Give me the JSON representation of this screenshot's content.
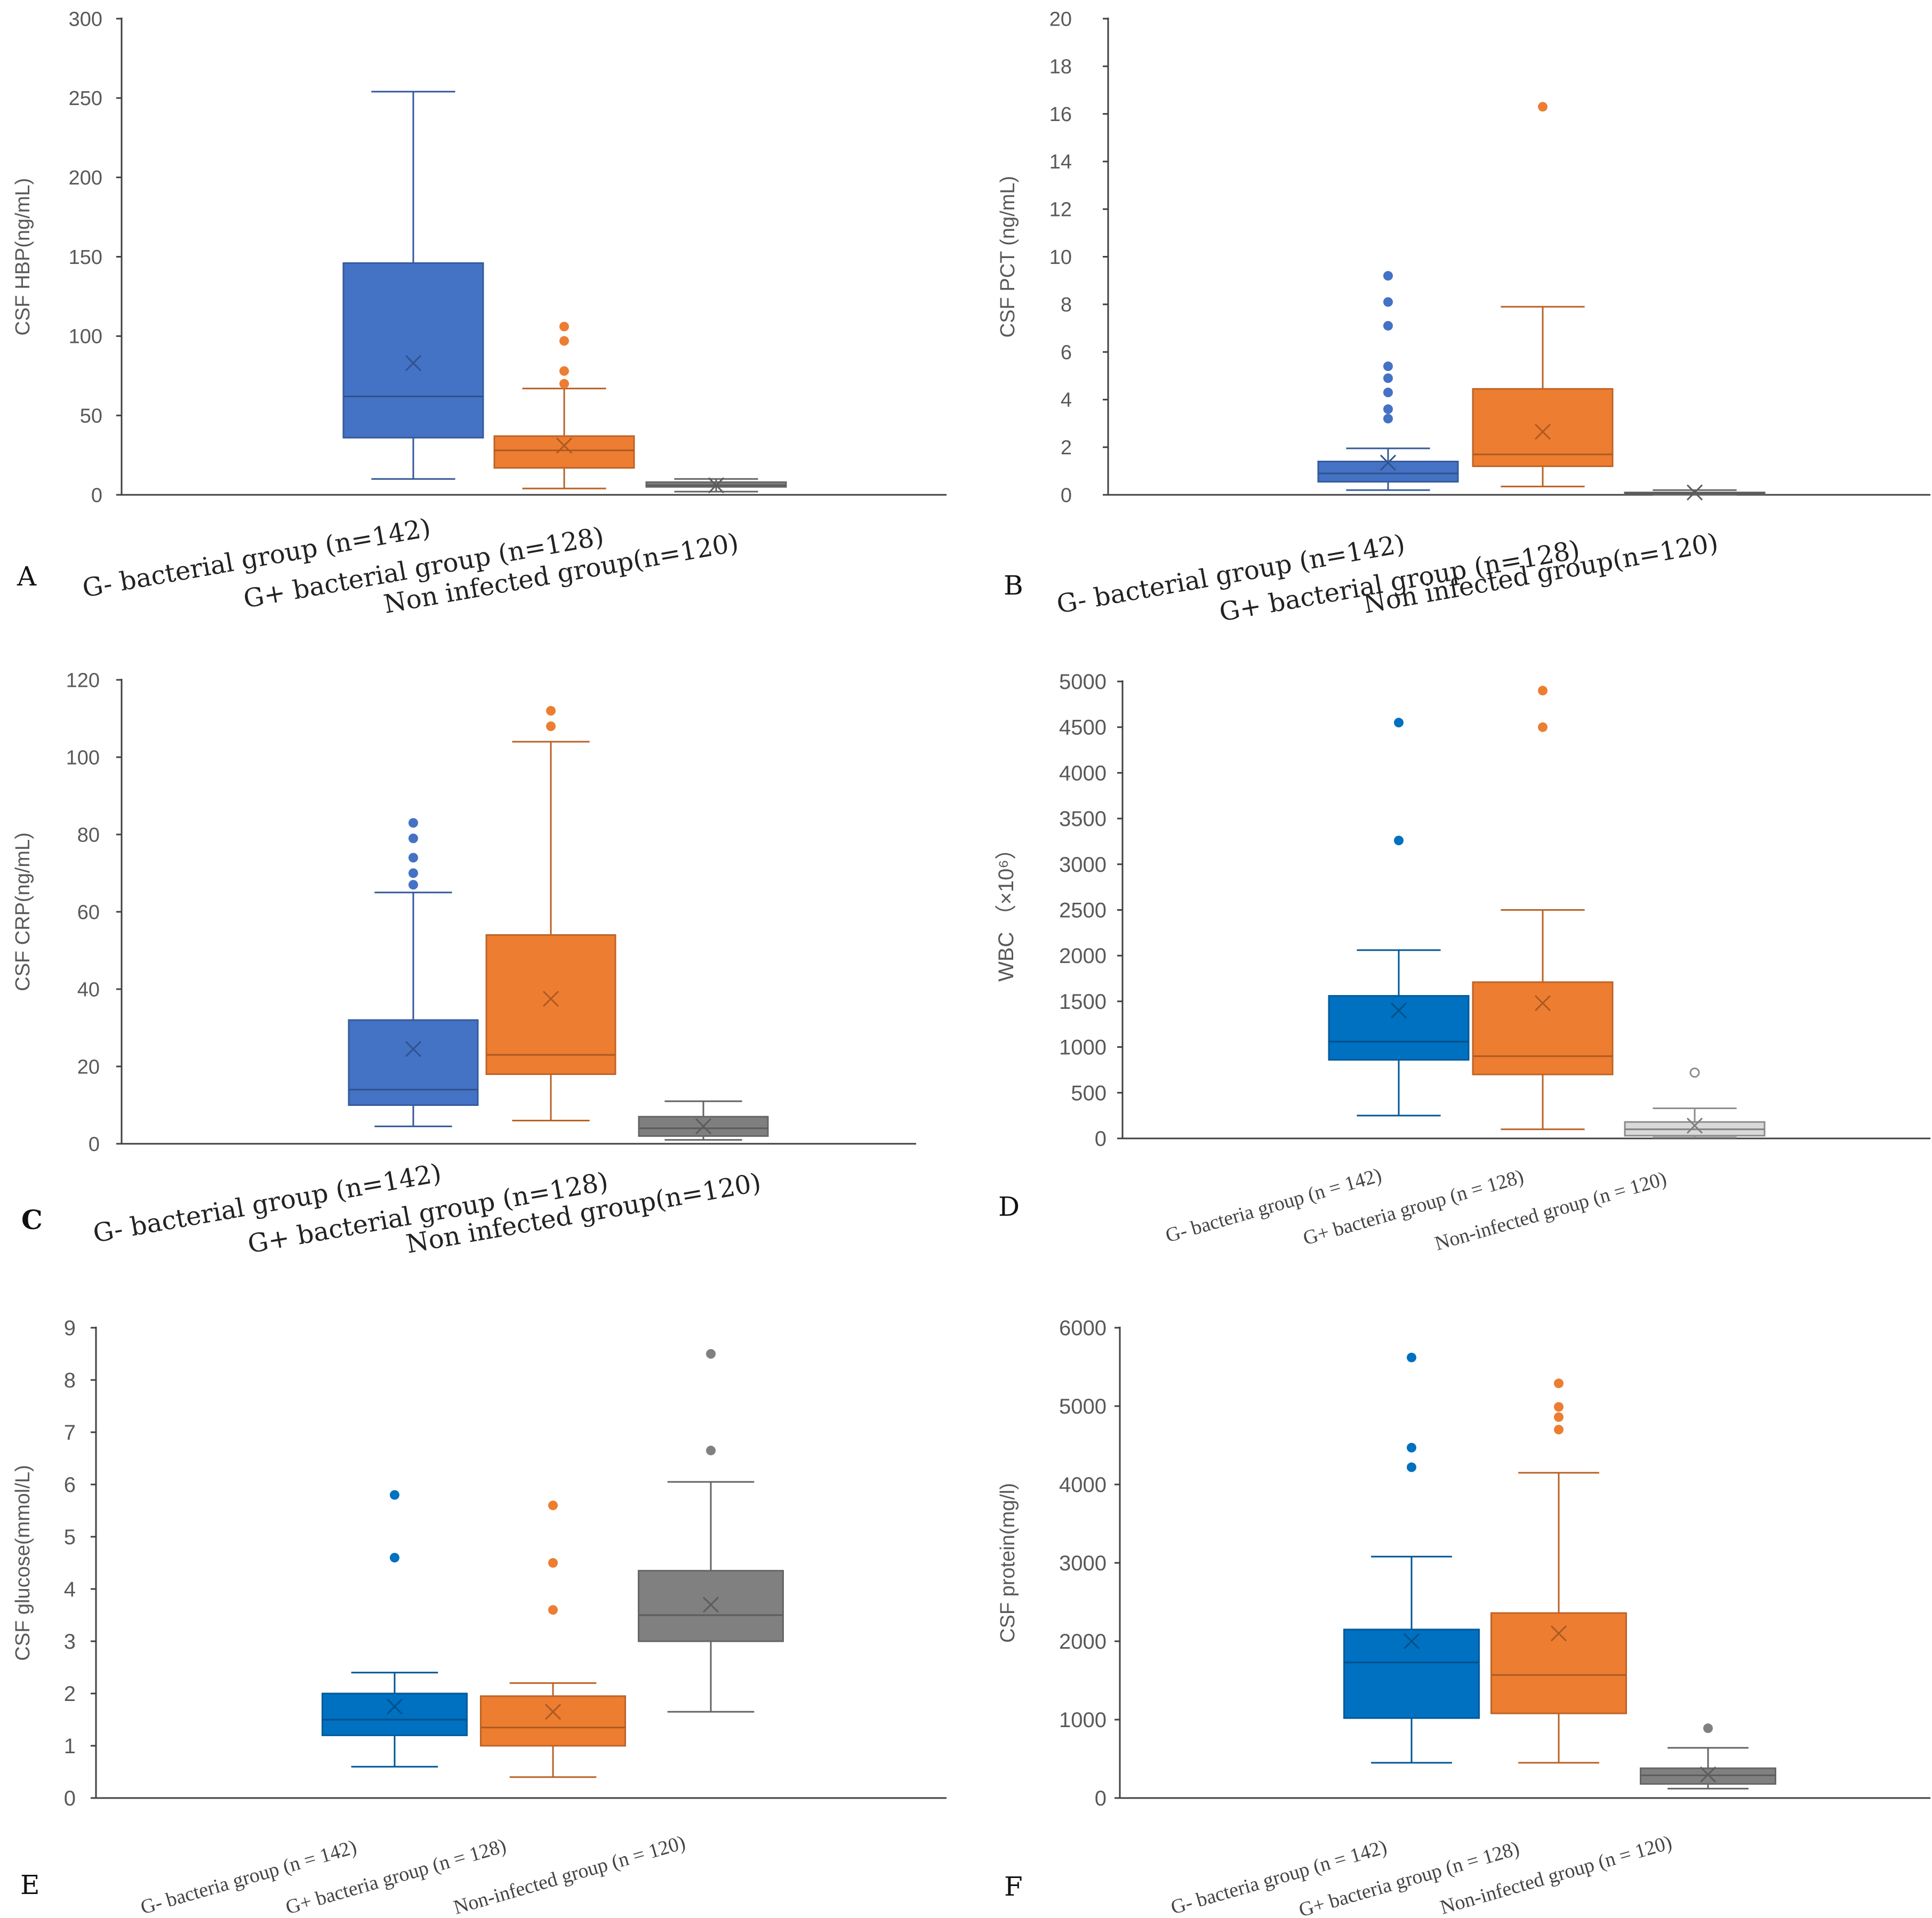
{
  "chart_data": [
    {
      "panel": "A",
      "type": "box",
      "ylabel": "CSF HBP(ng/mL)",
      "ylim": [
        0,
        300
      ],
      "yticks": [
        0,
        50,
        100,
        150,
        200,
        250,
        300
      ],
      "categories": [
        "G- bacterial group (n=142)",
        "G+ bacterial group (n=128)",
        "Non infected group(n=120)"
      ],
      "series": [
        {
          "name": "G- bacterial group (n=142)",
          "color": "#4472C4",
          "whisker_low": 10,
          "q1": 36,
          "median": 62,
          "q3": 146,
          "whisker_high": 254,
          "mean": 83,
          "outliers": []
        },
        {
          "name": "G+ bacterial group (n=128)",
          "color": "#ED7D31",
          "whisker_low": 4,
          "q1": 17,
          "median": 28,
          "q3": 37,
          "whisker_high": 67,
          "mean": 31,
          "outliers": [
            70,
            78,
            97,
            106
          ]
        },
        {
          "name": "Non infected group(n=120)",
          "color": "#7F7F7F",
          "whisker_low": 2,
          "q1": 5,
          "median": 6,
          "q3": 8,
          "whisker_high": 10,
          "mean": 6,
          "outliers": []
        }
      ]
    },
    {
      "panel": "B",
      "type": "box",
      "ylabel": "CSF  PCT (ng/mL)",
      "ylim": [
        0,
        20
      ],
      "yticks": [
        0,
        2,
        4,
        6,
        8,
        10,
        12,
        14,
        16,
        18,
        20
      ],
      "categories": [
        "G- bacterial group (n=142)",
        "G+ bacterial group (n=128)",
        "Non infected group(n=120)"
      ],
      "series": [
        {
          "name": "G- bacterial group (n=142)",
          "color": "#4472C4",
          "whisker_low": 0.2,
          "q1": 0.55,
          "median": 0.9,
          "q3": 1.4,
          "whisker_high": 1.95,
          "mean": 1.35,
          "outliers": [
            3.2,
            3.6,
            4.3,
            4.9,
            5.4,
            7.1,
            8.1,
            9.2
          ]
        },
        {
          "name": "G+ bacterial group (n=128)",
          "color": "#ED7D31",
          "whisker_low": 0.35,
          "q1": 1.2,
          "median": 1.7,
          "q3": 4.45,
          "whisker_high": 7.9,
          "mean": 2.65,
          "outliers": [
            16.3
          ]
        },
        {
          "name": "Non infected group(n=120)",
          "color": "#7F7F7F",
          "whisker_low": 0.0,
          "q1": 0.03,
          "median": 0.06,
          "q3": 0.1,
          "whisker_high": 0.2,
          "mean": 0.1,
          "outliers": []
        }
      ]
    },
    {
      "panel": "C",
      "type": "box",
      "ylabel": "CSF  CRP(ng/mL)",
      "ylim": [
        0,
        120
      ],
      "yticks": [
        0,
        20,
        40,
        60,
        80,
        100,
        120
      ],
      "categories": [
        "G- bacterial group (n=142)",
        "G+ bacterial group (n=128)",
        "Non infected group(n=120)"
      ],
      "series": [
        {
          "name": "G- bacterial group (n=142)",
          "color": "#4472C4",
          "whisker_low": 4.5,
          "q1": 10,
          "median": 14,
          "q3": 32,
          "whisker_high": 65,
          "mean": 24.5,
          "outliers": [
            67,
            70,
            74,
            79,
            83
          ]
        },
        {
          "name": "G+ bacterial group (n=128)",
          "color": "#ED7D31",
          "whisker_low": 6,
          "q1": 18,
          "median": 23,
          "q3": 54,
          "whisker_high": 104,
          "mean": 37.5,
          "outliers": [
            108,
            112
          ]
        },
        {
          "name": "Non infected group(n=120)",
          "color": "#7F7F7F",
          "whisker_low": 1,
          "q1": 2,
          "median": 4,
          "q3": 7,
          "whisker_high": 11,
          "mean": 4.5,
          "outliers": []
        }
      ]
    },
    {
      "panel": "D",
      "type": "box",
      "ylabel": "WBC （×10⁶）",
      "ylim": [
        0,
        5000
      ],
      "yticks": [
        0,
        500,
        1000,
        1500,
        2000,
        2500,
        3000,
        3500,
        4000,
        4500,
        5000
      ],
      "categories": [
        "G- bacteria group (n = 142)",
        "G+ bacteria group (n = 128)",
        "Non-infected group (n = 120)"
      ],
      "series": [
        {
          "name": "G- bacteria group (n = 142)",
          "color": "#0070C0",
          "whisker_low": 250,
          "q1": 860,
          "median": 1060,
          "q3": 1560,
          "whisker_high": 2060,
          "mean": 1400,
          "outliers": [
            3260,
            4550
          ]
        },
        {
          "name": "G+ bacteria group (n = 128)",
          "color": "#ED7D31",
          "whisker_low": 100,
          "q1": 700,
          "median": 900,
          "q3": 1710,
          "whisker_high": 2500,
          "mean": 1480,
          "outliers": [
            4500,
            4900
          ]
        },
        {
          "name": "Non-infected group (n = 120)",
          "color": "#D9D9D9",
          "whisker_low": 10,
          "q1": 30,
          "median": 100,
          "q3": 180,
          "whisker_high": 330,
          "mean": 140,
          "outliers": [
            720
          ]
        }
      ]
    },
    {
      "panel": "E",
      "type": "box",
      "ylabel": "CSF glucose(mmol/L)",
      "ylim": [
        0,
        9
      ],
      "yticks": [
        0,
        1,
        2,
        3,
        4,
        5,
        6,
        7,
        8,
        9
      ],
      "categories": [
        "G- bacteria group (n = 142)",
        "G+ bacteria group (n = 128)",
        "Non-infected group (n = 120)"
      ],
      "series": [
        {
          "name": "G- bacteria group (n = 142)",
          "color": "#0070C0",
          "whisker_low": 0.6,
          "q1": 1.2,
          "median": 1.5,
          "q3": 2.0,
          "whisker_high": 2.4,
          "mean": 1.75,
          "outliers": [
            4.6,
            5.8
          ]
        },
        {
          "name": "G+ bacteria group (n = 128)",
          "color": "#ED7D31",
          "whisker_low": 0.4,
          "q1": 1.0,
          "median": 1.35,
          "q3": 1.95,
          "whisker_high": 2.2,
          "mean": 1.65,
          "outliers": [
            3.6,
            4.5,
            5.6
          ]
        },
        {
          "name": "Non-infected group (n = 120)",
          "color": "#808080",
          "whisker_low": 1.65,
          "q1": 3.0,
          "median": 3.5,
          "q3": 4.35,
          "whisker_high": 6.05,
          "mean": 3.7,
          "outliers": [
            6.65,
            8.5
          ]
        }
      ]
    },
    {
      "panel": "F",
      "type": "box",
      "ylabel": "CSF protein(mg/l)",
      "ylim": [
        0,
        6000
      ],
      "yticks": [
        0,
        1000,
        2000,
        3000,
        4000,
        5000,
        6000
      ],
      "categories": [
        "G- bacteria group (n = 142)",
        "G+ bacteria group (n = 128)",
        "Non-infected group (n = 120)"
      ],
      "series": [
        {
          "name": "G- bacteria group (n = 142)",
          "color": "#0070C0",
          "whisker_low": 450,
          "q1": 1020,
          "median": 1730,
          "q3": 2150,
          "whisker_high": 3080,
          "mean": 2000,
          "outliers": [
            4220,
            4470,
            5620
          ]
        },
        {
          "name": "G+ bacteria group (n = 128)",
          "color": "#ED7D31",
          "whisker_low": 450,
          "q1": 1080,
          "median": 1570,
          "q3": 2360,
          "whisker_high": 4150,
          "mean": 2100,
          "outliers": [
            4700,
            4860,
            4990,
            5290
          ]
        },
        {
          "name": "Non-infected group (n = 120)",
          "color": "#808080",
          "whisker_low": 120,
          "q1": 180,
          "median": 290,
          "q3": 380,
          "whisker_high": 640,
          "mean": 300,
          "outliers": [
            890
          ]
        }
      ]
    }
  ]
}
